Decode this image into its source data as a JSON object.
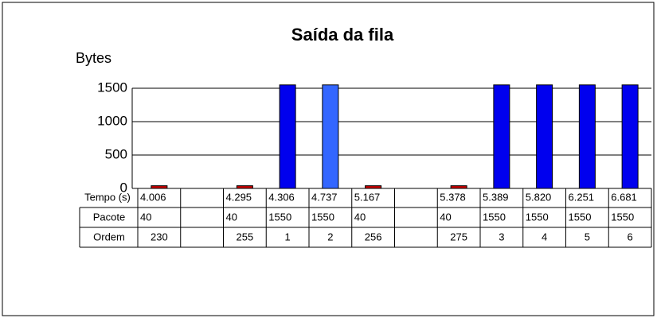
{
  "chart_data": {
    "type": "bar",
    "title": "Saída da fila",
    "y_label": "Bytes",
    "categories_label": "Tempo (s)",
    "categories": [
      "4.006",
      null,
      "4.295",
      "4.306",
      "4.737",
      "5.167",
      null,
      "5.378",
      "5.389",
      "5.820",
      "6.251",
      "6.681"
    ],
    "values": [
      40,
      null,
      40,
      1550,
      1550,
      40,
      null,
      40,
      1550,
      1550,
      1550,
      1550
    ],
    "colors": [
      "#cc0000",
      null,
      "#cc0000",
      "#0000ee",
      "#3366ff",
      "#cc0000",
      null,
      "#cc0000",
      "#0000ee",
      "#0000ee",
      "#0000ee",
      "#0000ee"
    ],
    "values_label": "Pacote",
    "order_label": "Ordem",
    "order": [
      "230",
      null,
      "255",
      "1",
      "2",
      "256",
      null,
      "275",
      "3",
      "4",
      "5",
      "6"
    ],
    "ylim": [
      0,
      1500
    ],
    "yticks": [
      0,
      500,
      1000,
      1500
    ],
    "grid": true
  }
}
